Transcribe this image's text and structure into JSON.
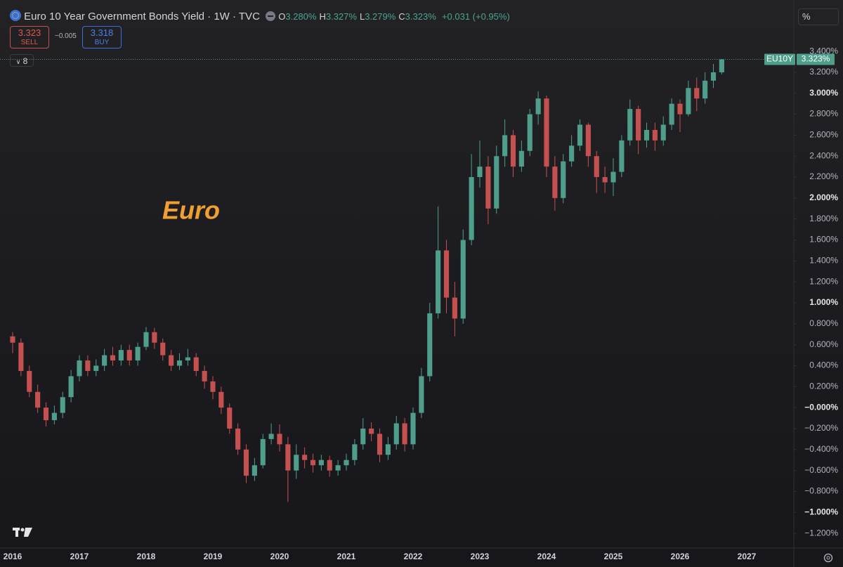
{
  "header": {
    "title": "Euro 10 Year Government Bonds Yield · 1W · TVC",
    "ohlc": [
      {
        "key": "O",
        "value": "3.280%"
      },
      {
        "key": "H",
        "value": "3.327%"
      },
      {
        "key": "L",
        "value": "3.279%"
      },
      {
        "key": "C",
        "value": "3.323%"
      }
    ],
    "change": "+0.031 (+0.95%)",
    "sell": {
      "price": "3.323",
      "label": "SELL"
    },
    "spread": "−0.005",
    "buy": {
      "price": "3.318",
      "label": "BUY"
    },
    "indicators": "8",
    "unit_button": "%"
  },
  "chart_data": {
    "type": "candlestick",
    "annotation": "Euro",
    "price_label": {
      "symbol": "EU10Y",
      "value": "3.323%"
    },
    "up_color": "#4f9e8c",
    "down_color": "#c4514f",
    "ylim": [
      -1.34,
      3.89
    ],
    "yticks": [
      {
        "value": 3.4,
        "label": "3.400%"
      },
      {
        "value": 3.2,
        "label": "3.200%"
      },
      {
        "value": 3.0,
        "label": "3.000%"
      },
      {
        "value": 2.8,
        "label": "2.800%"
      },
      {
        "value": 2.6,
        "label": "2.600%"
      },
      {
        "value": 2.4,
        "label": "2.400%"
      },
      {
        "value": 2.2,
        "label": "2.200%"
      },
      {
        "value": 2.0,
        "label": "2.000%"
      },
      {
        "value": 1.8,
        "label": "1.800%"
      },
      {
        "value": 1.6,
        "label": "1.600%"
      },
      {
        "value": 1.4,
        "label": "1.400%"
      },
      {
        "value": 1.2,
        "label": "1.200%"
      },
      {
        "value": 1.0,
        "label": "1.000%"
      },
      {
        "value": 0.8,
        "label": "0.800%"
      },
      {
        "value": 0.6,
        "label": "0.600%"
      },
      {
        "value": 0.4,
        "label": "0.400%"
      },
      {
        "value": 0.2,
        "label": "0.200%"
      },
      {
        "value": 0,
        "label": "−0.000%"
      },
      {
        "value": -0.2,
        "label": "−0.200%"
      },
      {
        "value": -0.4,
        "label": "−0.400%"
      },
      {
        "value": -0.6,
        "label": "−0.600%"
      },
      {
        "value": -0.8,
        "label": "−0.800%"
      },
      {
        "value": -1.0,
        "label": "−1.000%"
      },
      {
        "value": -1.2,
        "label": "−1.200%"
      }
    ],
    "categories": [
      "2016",
      null,
      null,
      null,
      null,
      null,
      null,
      null,
      "2017",
      null,
      null,
      null,
      null,
      null,
      null,
      null,
      "2018",
      null,
      null,
      null,
      null,
      null,
      null,
      null,
      "2019",
      null,
      null,
      null,
      null,
      null,
      null,
      null,
      "2020",
      null,
      null,
      null,
      null,
      null,
      null,
      null,
      "2021",
      null,
      null,
      null,
      null,
      null,
      null,
      null,
      "2022",
      null,
      null,
      null,
      null,
      null,
      null,
      null,
      "2023",
      null,
      null,
      null,
      null,
      null,
      null,
      null,
      "2024",
      null,
      null,
      null,
      null,
      null,
      null,
      null,
      "2025",
      null,
      null,
      null,
      null,
      null,
      null,
      null,
      "2026",
      null,
      null,
      null,
      null,
      null,
      null,
      null,
      "2027",
      null,
      null,
      null,
      null,
      null
    ],
    "open": [
      0.68,
      0.62,
      0.35,
      0.15,
      0.0,
      -0.12,
      -0.05,
      0.1,
      0.3,
      0.45,
      0.35,
      0.4,
      0.5,
      0.45,
      0.55,
      0.45,
      0.58,
      0.72,
      0.62,
      0.5,
      0.4,
      0.45,
      0.48,
      0.35,
      0.25,
      0.15,
      0.0,
      -0.2,
      -0.4,
      -0.65,
      -0.55,
      -0.3,
      -0.25,
      -0.35,
      -0.6,
      -0.45,
      -0.5,
      -0.55,
      -0.5,
      -0.6,
      -0.55,
      -0.5,
      -0.35,
      -0.2,
      -0.25,
      -0.45,
      -0.35,
      -0.15,
      -0.35,
      -0.05,
      0.3,
      0.9,
      1.5,
      1.05,
      0.85,
      1.6,
      2.2,
      2.3,
      1.9,
      2.4,
      2.6,
      2.3,
      2.45,
      2.8,
      2.95,
      2.3,
      2.0,
      2.35,
      2.5,
      2.7,
      2.4,
      2.2,
      2.15,
      2.25,
      2.55,
      2.85,
      2.55,
      2.65,
      2.55,
      2.7,
      2.9,
      2.8,
      3.05,
      2.95,
      3.12,
      3.2,
      null,
      null,
      null,
      null,
      null,
      null,
      null,
      null
    ],
    "high": [
      0.72,
      0.66,
      0.4,
      0.22,
      0.05,
      0.02,
      0.15,
      0.36,
      0.5,
      0.5,
      0.46,
      0.56,
      0.58,
      0.6,
      0.6,
      0.62,
      0.77,
      0.76,
      0.66,
      0.55,
      0.52,
      0.56,
      0.52,
      0.4,
      0.3,
      0.2,
      0.04,
      -0.15,
      -0.35,
      -0.48,
      -0.25,
      -0.15,
      -0.16,
      -0.28,
      -0.35,
      -0.38,
      -0.44,
      -0.45,
      -0.46,
      -0.5,
      -0.44,
      -0.3,
      -0.1,
      -0.14,
      -0.2,
      -0.28,
      -0.08,
      -0.1,
      0.0,
      0.38,
      1.0,
      1.92,
      1.6,
      1.2,
      1.7,
      2.42,
      2.55,
      2.4,
      2.5,
      2.75,
      2.65,
      2.55,
      2.85,
      3.02,
      2.98,
      2.4,
      2.42,
      2.6,
      2.75,
      2.72,
      2.45,
      2.3,
      2.38,
      2.6,
      2.94,
      2.88,
      2.72,
      2.72,
      2.78,
      2.95,
      2.94,
      3.12,
      3.15,
      3.2,
      3.28,
      3.327,
      null,
      null,
      null,
      null,
      null,
      null,
      null,
      null
    ],
    "low": [
      0.52,
      0.3,
      0.1,
      -0.05,
      -0.18,
      -0.16,
      -0.1,
      0.05,
      0.25,
      0.3,
      0.3,
      0.35,
      0.4,
      0.4,
      0.4,
      0.4,
      0.55,
      0.56,
      0.45,
      0.35,
      0.36,
      0.4,
      0.3,
      0.18,
      0.08,
      -0.06,
      -0.25,
      -0.45,
      -0.72,
      -0.7,
      -0.58,
      -0.35,
      -0.42,
      -0.9,
      -0.68,
      -0.58,
      -0.62,
      -0.6,
      -0.66,
      -0.65,
      -0.6,
      -0.55,
      -0.4,
      -0.32,
      -0.52,
      -0.5,
      -0.4,
      -0.42,
      -0.4,
      -0.1,
      0.25,
      0.85,
      0.9,
      0.68,
      0.8,
      1.55,
      2.1,
      1.75,
      1.85,
      2.3,
      2.2,
      2.25,
      2.4,
      2.7,
      2.2,
      1.88,
      1.95,
      2.3,
      2.45,
      2.3,
      2.05,
      2.05,
      2.02,
      2.2,
      2.5,
      2.42,
      2.48,
      2.45,
      2.5,
      2.65,
      2.63,
      2.78,
      2.83,
      2.9,
      3.05,
      3.18,
      null,
      null,
      null,
      null,
      null,
      null,
      null,
      null
    ],
    "close": [
      0.62,
      0.35,
      0.15,
      0.0,
      -0.12,
      -0.05,
      0.1,
      0.3,
      0.45,
      0.35,
      0.4,
      0.5,
      0.45,
      0.55,
      0.45,
      0.58,
      0.72,
      0.62,
      0.5,
      0.4,
      0.45,
      0.48,
      0.35,
      0.25,
      0.15,
      0.0,
      -0.2,
      -0.4,
      -0.65,
      -0.55,
      -0.3,
      -0.25,
      -0.35,
      -0.6,
      -0.45,
      -0.5,
      -0.55,
      -0.5,
      -0.6,
      -0.55,
      -0.5,
      -0.35,
      -0.2,
      -0.25,
      -0.45,
      -0.35,
      -0.15,
      -0.35,
      -0.05,
      0.3,
      0.9,
      1.5,
      1.05,
      0.85,
      1.6,
      2.2,
      2.3,
      1.9,
      2.4,
      2.6,
      2.3,
      2.45,
      2.8,
      2.95,
      2.3,
      2.0,
      2.35,
      2.5,
      2.7,
      2.4,
      2.2,
      2.15,
      2.25,
      2.55,
      2.85,
      2.55,
      2.65,
      2.55,
      2.7,
      2.9,
      2.8,
      3.05,
      2.95,
      3.12,
      3.2,
      3.323,
      null,
      null,
      null,
      null,
      null,
      null,
      null,
      null
    ]
  }
}
